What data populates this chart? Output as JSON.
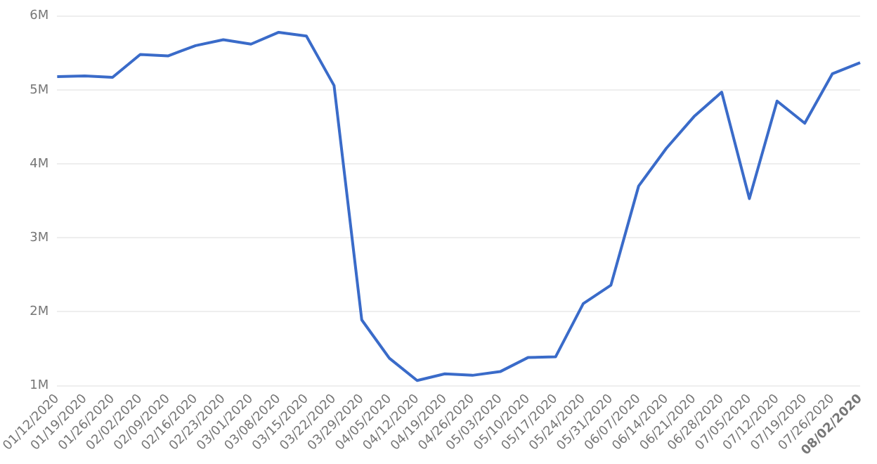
{
  "chart_data": {
    "type": "line",
    "categories": [
      "01/12/2020",
      "01/19/2020",
      "01/26/2020",
      "02/02/2020",
      "02/09/2020",
      "02/16/2020",
      "02/23/2020",
      "03/01/2020",
      "03/08/2020",
      "03/15/2020",
      "03/22/2020",
      "03/29/2020",
      "04/05/2020",
      "04/12/2020",
      "04/19/2020",
      "04/26/2020",
      "05/03/2020",
      "05/10/2020",
      "05/17/2020",
      "05/24/2020",
      "05/31/2020",
      "06/07/2020",
      "06/14/2020",
      "06/21/2020",
      "06/28/2020",
      "07/05/2020",
      "07/12/2020",
      "07/19/2020",
      "07/26/2020",
      "08/02/2020"
    ],
    "series": [
      {
        "color": "#3a6bc9",
        "values": [
          5.18,
          5.19,
          5.17,
          5.48,
          5.46,
          5.6,
          5.68,
          5.62,
          5.78,
          5.73,
          5.06,
          1.89,
          1.37,
          1.07,
          1.16,
          1.14,
          1.19,
          1.38,
          1.39,
          2.11,
          2.36,
          3.7,
          4.21,
          4.64,
          4.97,
          3.53,
          4.85,
          4.55,
          5.22,
          5.37
        ]
      }
    ],
    "ylim": [
      1,
      6
    ],
    "yticks": [
      {
        "value": 1,
        "label": "1M"
      },
      {
        "value": 2,
        "label": "2M"
      },
      {
        "value": 3,
        "label": "3M"
      },
      {
        "value": 4,
        "label": "4M"
      },
      {
        "value": 5,
        "label": "5M"
      },
      {
        "value": 6,
        "label": "6M"
      }
    ],
    "grid": "y",
    "legend": false,
    "marker": "none",
    "line_style": "solid"
  }
}
